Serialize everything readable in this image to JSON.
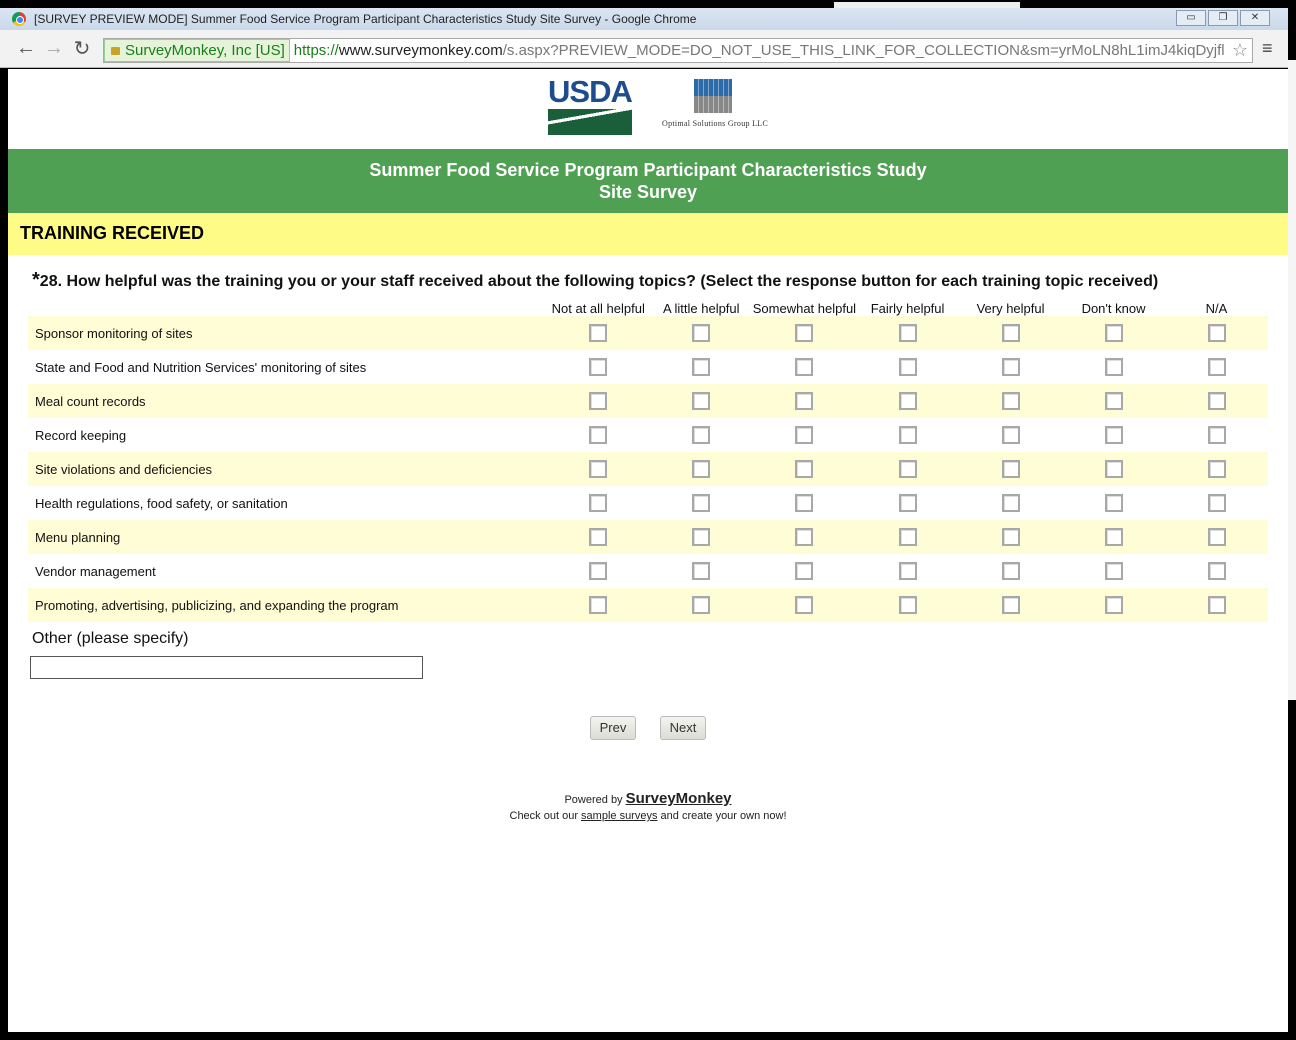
{
  "window": {
    "title": "[SURVEY PREVIEW MODE] Summer Food Service Program Participant Characteristics Study Site Survey - Google Chrome",
    "controls": [
      "minimize",
      "restore",
      "close"
    ]
  },
  "browser": {
    "ev_label": "SurveyMonkey, Inc [US]",
    "url_scheme": "https://",
    "url_host": "www.surveymonkey.com",
    "url_path": "/s.aspx?PREVIEW_MODE=DO_NOT_USE_THIS_LINK_FOR_COLLECTION&sm=yrMoLN8hL1imJ4kiqDyjfl"
  },
  "logos": {
    "usda": "USDA",
    "osg": "Optimal Solutions Group LLC"
  },
  "header": {
    "title_line1": "Summer Food Service Program Participant Characteristics Study",
    "title_line2": "Site Survey"
  },
  "section": {
    "title": "TRAINING RECEIVED"
  },
  "question": {
    "required_mark": "*",
    "text": "28. How helpful was the training you or your staff received about the following topics? (Select the response button for each training topic received)",
    "columns": [
      "Not at all helpful",
      "A little helpful",
      "Somewhat helpful",
      "Fairly helpful",
      "Very helpful",
      "Don't know",
      "N/A"
    ],
    "rows": [
      "Sponsor monitoring of sites",
      "State and Food and Nutrition Services' monitoring of sites",
      "Meal count records",
      "Record keeping",
      "Site violations and deficiencies",
      "Health regulations, food safety, or sanitation",
      "Menu planning",
      "Vendor management",
      "Promoting, advertising, publicizing, and expanding the program"
    ],
    "other_label": "Other (please specify)",
    "other_value": ""
  },
  "buttons": {
    "prev": "Prev",
    "next": "Next"
  },
  "footer": {
    "powered_by": "Powered by",
    "brand": "SurveyMonkey",
    "line2_pre": "Check out our",
    "line2_link": "sample surveys",
    "line2_post": "and create your own now!"
  },
  "colors": {
    "banner": "#4fa052",
    "section": "#fffb87",
    "row_alt": "#fffdd5"
  }
}
